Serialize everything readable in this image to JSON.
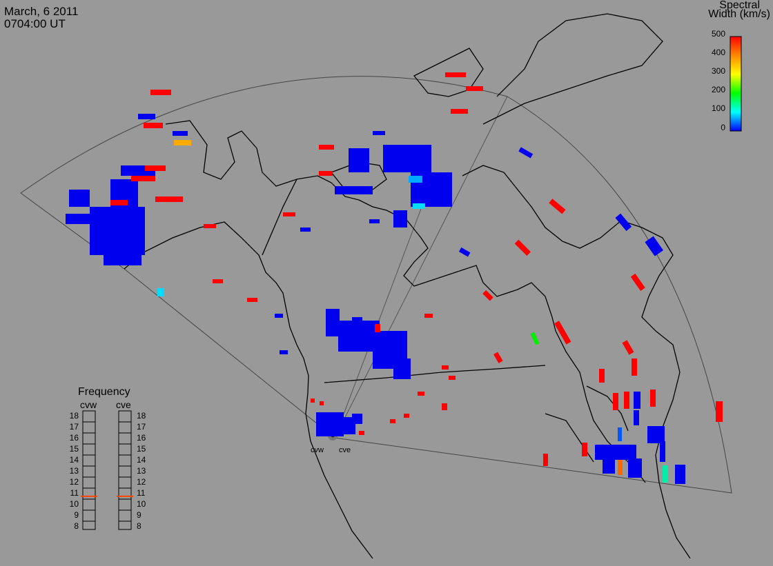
{
  "header": {
    "date": "March, 6 2011",
    "time": "0704:00 UT"
  },
  "colorbar": {
    "title_line1": "Spectral",
    "title_line2": "Width (km/s)",
    "ticks": [
      "500",
      "400",
      "300",
      "200",
      "100",
      "0"
    ],
    "range": [
      0,
      500
    ],
    "colors": [
      "#0000ff",
      "#00ffff",
      "#00ff00",
      "#ffff00",
      "#ff8800",
      "#ff0000"
    ]
  },
  "frequency_panel": {
    "title": "Frequency",
    "radars": [
      "cvw",
      "cve"
    ],
    "ticks": [
      "18",
      "17",
      "16",
      "15",
      "14",
      "13",
      "12",
      "11",
      "10",
      "9",
      "8"
    ],
    "values_mhz": {
      "cvw": 10.8,
      "cve": 10.8
    },
    "marker_color": "#ff4400"
  },
  "radar_sites": {
    "west": "cvw",
    "east": "cve"
  },
  "colors": {
    "background": "#999999",
    "coastline": "#000000",
    "echo_red": "#ff0000",
    "echo_blue": "#0000ff",
    "echo_cyan": "#00ddff",
    "echo_green": "#00ee00",
    "echo_orange": "#ffaa00"
  }
}
